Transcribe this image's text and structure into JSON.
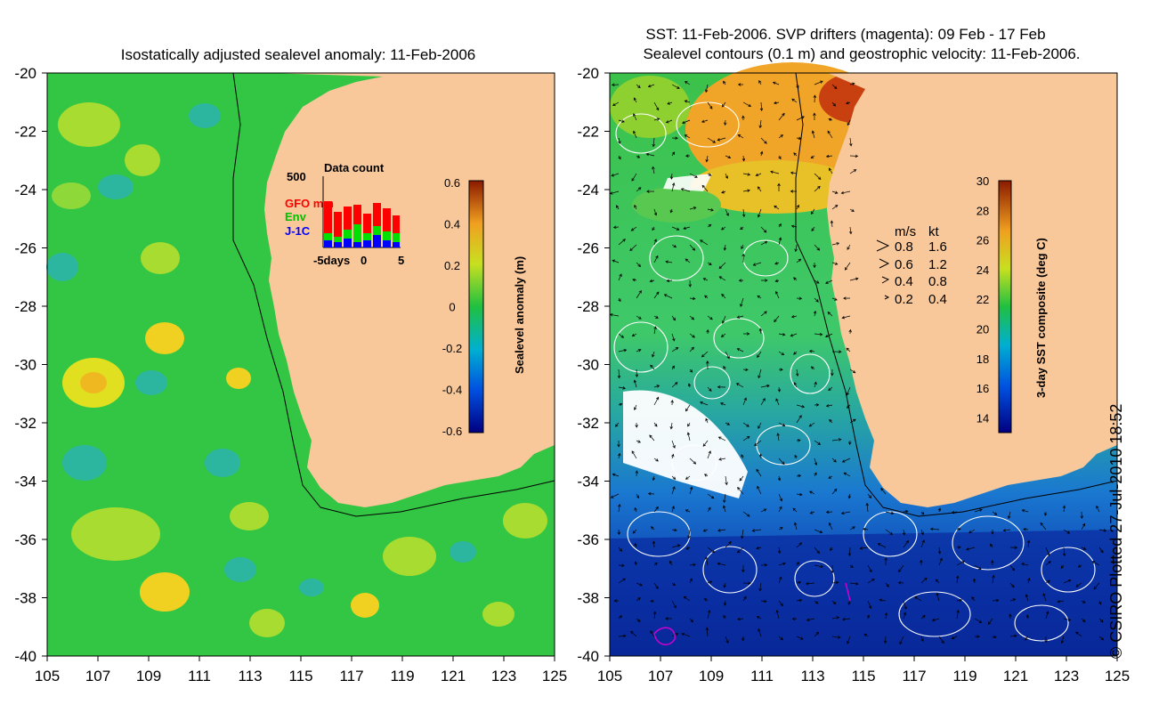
{
  "left_panel": {
    "title": "Isostatically adjusted sealevel anomaly: 11-Feb-2006",
    "lat_labels": [
      "-20",
      "-22",
      "-24",
      "-26",
      "-28",
      "-30",
      "-32",
      "-34",
      "-36",
      "-38",
      "-40"
    ],
    "lon_labels": [
      "105",
      "107",
      "109",
      "111",
      "113",
      "115",
      "117",
      "119",
      "121",
      "123",
      "125"
    ],
    "colorbar": {
      "label": "Sealevel anomaly (m)",
      "ticks": [
        "0.6",
        "0.4",
        "0.2",
        "0",
        "-0.2",
        "-0.4",
        "-0.6"
      ],
      "range": [
        -0.6,
        0.6
      ]
    },
    "inset": {
      "title": "Data count",
      "ymax_label": "500",
      "xlabels": [
        "-5days",
        "0",
        "5"
      ],
      "legend": [
        {
          "label": "GFO mm",
          "color": "#ff0000"
        },
        {
          "label": "Env",
          "color": "#00e000"
        },
        {
          "label": "J-1C",
          "color": "#0000ff"
        }
      ]
    }
  },
  "right_panel": {
    "title_line1": "SST: 11-Feb-2006. SVP drifters (magenta): 09 Feb - 17 Feb",
    "title_line2": "Sealevel contours (0.1 m) and geostrophic velocity: 11-Feb-2006.",
    "lat_labels": [
      "-20",
      "-22",
      "-24",
      "-26",
      "-28",
      "-30",
      "-32",
      "-34",
      "-36",
      "-38",
      "-40"
    ],
    "lon_labels": [
      "105",
      "107",
      "109",
      "111",
      "113",
      "115",
      "117",
      "119",
      "121",
      "123",
      "125"
    ],
    "colorbar": {
      "label": "3-day SST composite (deg C)",
      "ticks": [
        "30",
        "28",
        "26",
        "24",
        "22",
        "20",
        "18",
        "16",
        "14"
      ],
      "range": [
        13,
        30
      ]
    },
    "velocity_legend": {
      "header_ms": "m/s",
      "header_kt": "kt",
      "rows": [
        {
          "ms": "0.8",
          "kt": "1.6"
        },
        {
          "ms": "0.6",
          "kt": "1.2"
        },
        {
          "ms": "0.4",
          "kt": "0.8"
        },
        {
          "ms": "0.2",
          "kt": "0.4"
        }
      ]
    }
  },
  "copyright": "© CSIRO Plotted 27-Jul-2010 18:52",
  "colors": {
    "land": "#f9c89a",
    "sla_ocean": "#33c644",
    "sst_north": "#f0a020",
    "sst_mid": "#3dc85a",
    "sst_south": "#1050b8"
  }
}
